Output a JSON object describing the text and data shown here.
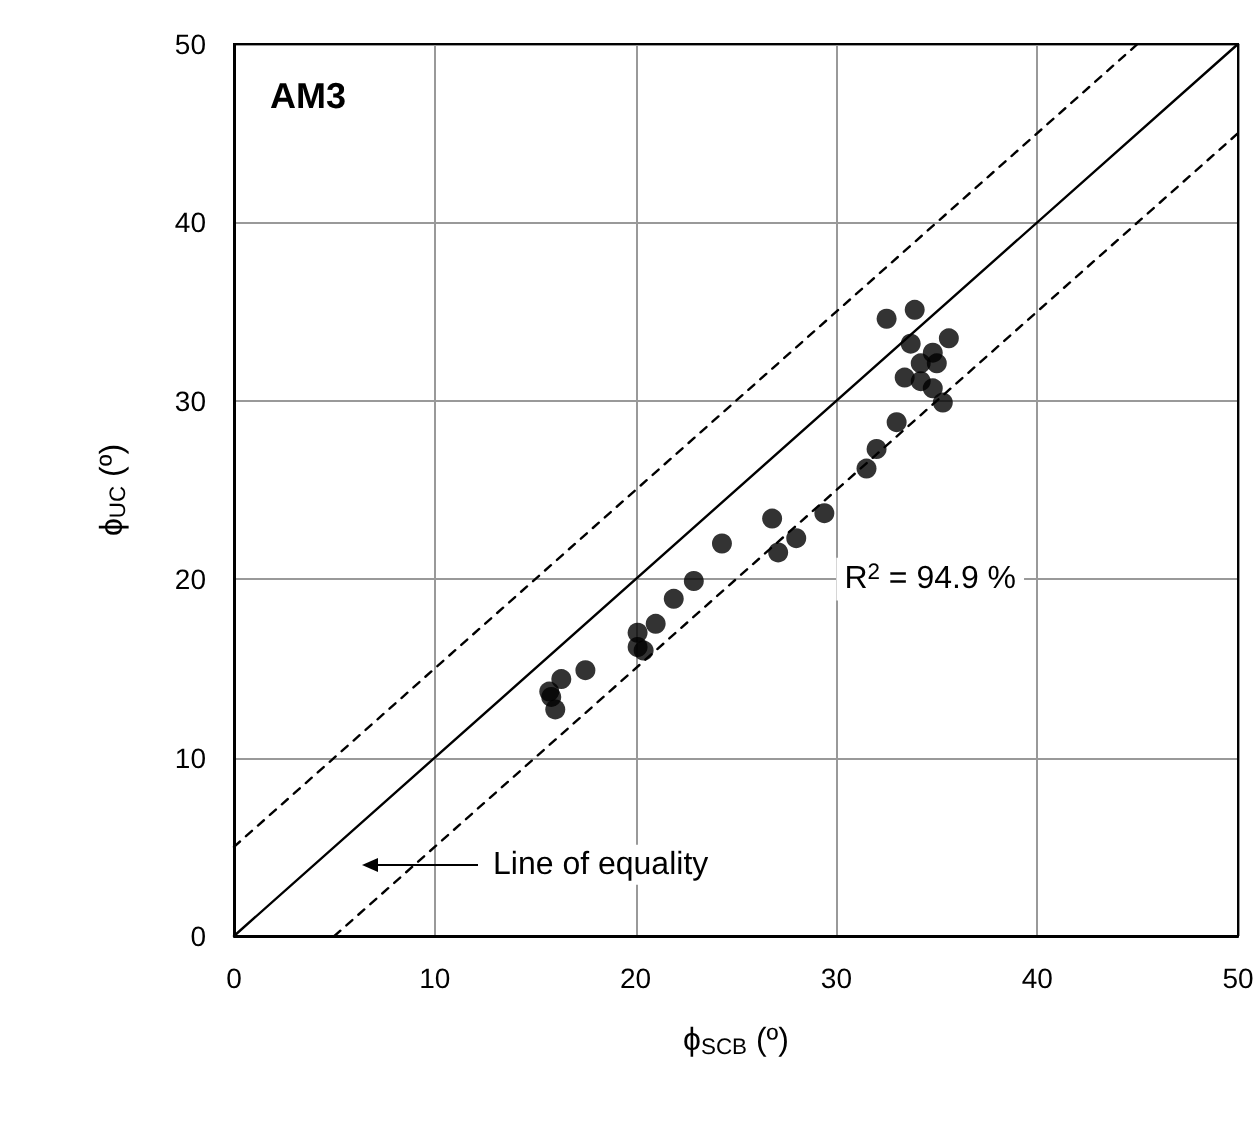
{
  "chart_data": {
    "type": "scatter",
    "title": "AM3",
    "xlabel": "ϕ$_{SCB}$ (º)",
    "ylabel": "ϕ$_{UC}$ (º)",
    "annotations": [
      "R$^{2}$ = 94.9 %",
      "Line of equality"
    ],
    "xlim": [
      0,
      50
    ],
    "ylim": [
      0,
      50
    ],
    "xticks": [
      0,
      10,
      20,
      30,
      40,
      50
    ],
    "yticks": [
      0,
      10,
      20,
      30,
      40,
      50
    ],
    "grid": true,
    "marker": "circle",
    "series": [
      {
        "color": "#000000",
        "x": [
          32.5,
          33.9,
          33.7,
          35.6,
          34.8,
          34.2,
          35.0,
          33.4,
          34.2,
          34.8,
          35.3,
          33.0,
          32.0,
          31.5,
          29.4,
          26.8,
          28.0,
          27.1,
          24.3,
          22.9,
          21.9,
          21.0,
          20.1,
          20.1,
          20.4,
          17.5,
          16.3,
          15.7,
          15.8,
          16.0
        ],
        "values": [
          34.6,
          35.1,
          33.2,
          33.5,
          32.7,
          32.1,
          32.1,
          31.3,
          31.1,
          30.7,
          29.9,
          28.8,
          27.3,
          26.2,
          23.7,
          23.4,
          22.3,
          21.5,
          22.0,
          19.9,
          18.9,
          17.5,
          17.0,
          16.2,
          16.0,
          14.9,
          14.4,
          13.7,
          13.4,
          12.7
        ]
      },
      {
        "type": "line",
        "color": "#000000",
        "line_style": "solid",
        "marker": "none",
        "x": [
          0,
          50
        ],
        "values": [
          0,
          50
        ]
      },
      {
        "type": "line",
        "color": "#000000",
        "line_style": "dashed",
        "marker": "none",
        "x": [
          0,
          45
        ],
        "values": [
          5,
          50
        ]
      },
      {
        "type": "line",
        "color": "#000000",
        "line_style": "dashed",
        "marker": "none",
        "x": [
          5,
          50
        ],
        "values": [
          0,
          45
        ]
      }
    ]
  }
}
